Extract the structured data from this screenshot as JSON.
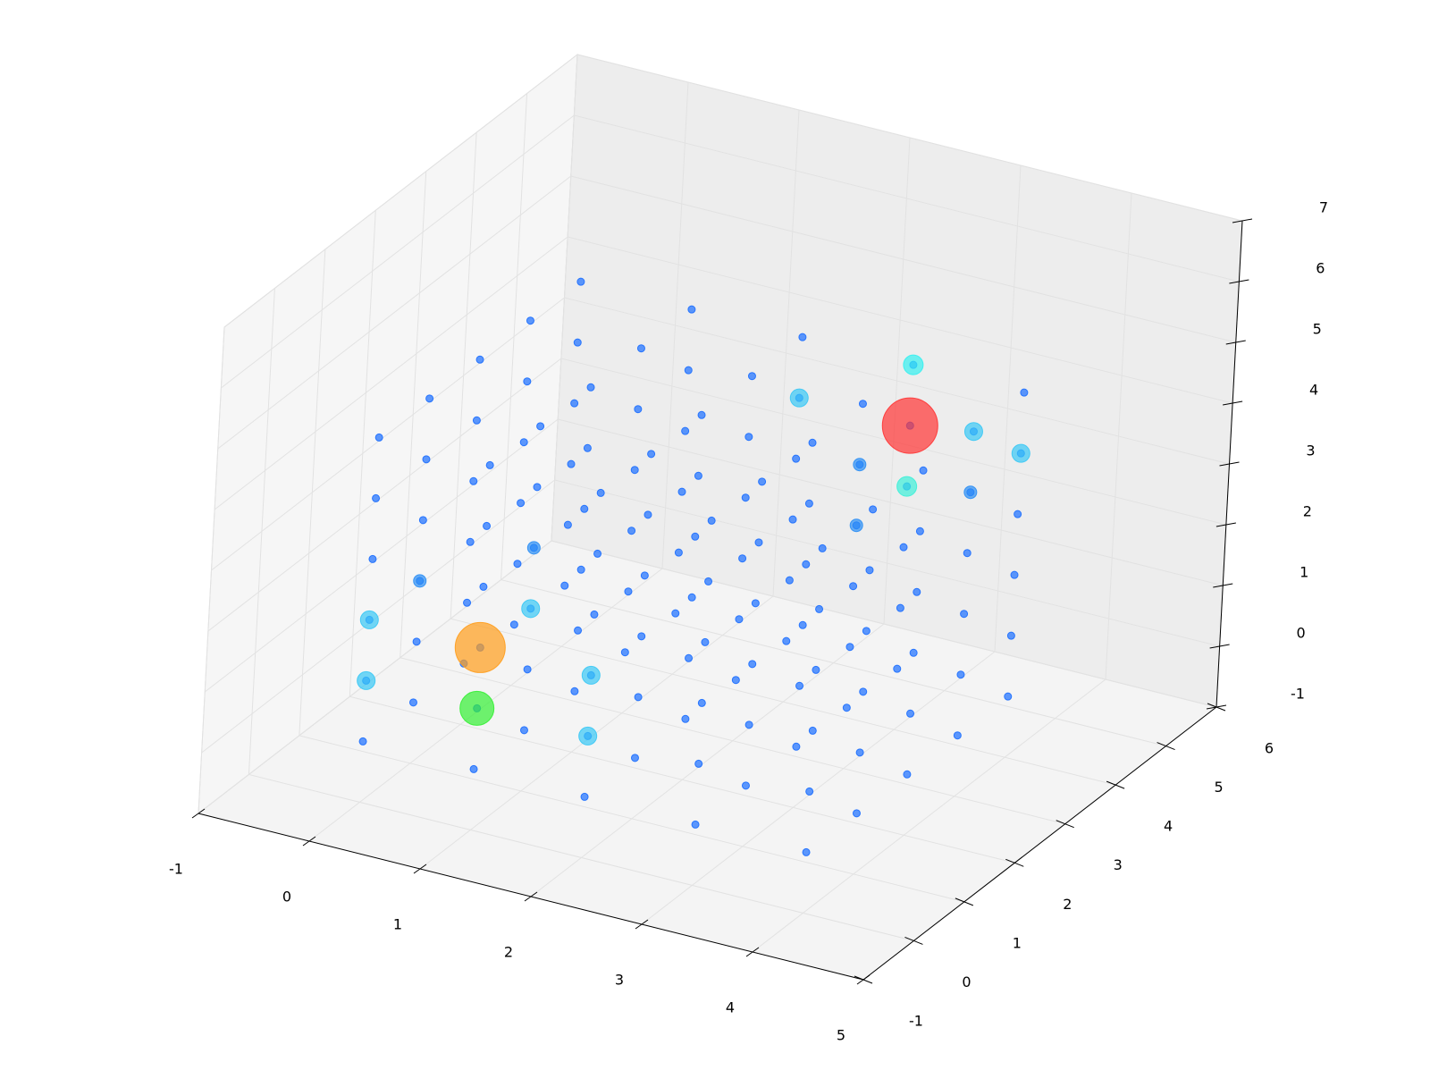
{
  "chart_data": {
    "type": "scatter3d",
    "xlim": [
      -1,
      5
    ],
    "ylim": [
      -1,
      6
    ],
    "zlim": [
      -1,
      7
    ],
    "xticks": [
      -1,
      0,
      1,
      2,
      3,
      4,
      5
    ],
    "yticks": [
      -1,
      0,
      1,
      2,
      3,
      4,
      5,
      6
    ],
    "zticks": [
      -1,
      0,
      1,
      2,
      3,
      4,
      5,
      6,
      7
    ],
    "grid": true,
    "series": [
      {
        "color": "#1a6dff",
        "marker_size": 4,
        "points": [
          [
            0,
            0,
            0
          ],
          [
            0,
            0,
            1
          ],
          [
            0,
            0,
            2
          ],
          [
            0,
            0,
            3
          ],
          [
            0,
            0,
            4
          ],
          [
            0,
            0,
            5
          ],
          [
            0,
            1,
            0
          ],
          [
            0,
            1,
            1
          ],
          [
            0,
            1,
            2
          ],
          [
            0,
            1,
            3
          ],
          [
            0,
            1,
            4
          ],
          [
            0,
            1,
            5
          ],
          [
            0,
            2,
            0
          ],
          [
            0,
            2,
            1
          ],
          [
            0,
            2,
            2
          ],
          [
            0,
            2,
            3
          ],
          [
            0,
            2,
            4
          ],
          [
            0,
            2,
            5
          ],
          [
            0,
            3,
            0
          ],
          [
            0,
            3,
            1
          ],
          [
            0,
            3,
            2
          ],
          [
            0,
            3,
            3
          ],
          [
            0,
            3,
            4
          ],
          [
            0,
            3,
            5
          ],
          [
            0,
            4,
            0
          ],
          [
            0,
            4,
            1
          ],
          [
            0,
            4,
            2
          ],
          [
            0,
            4,
            3
          ],
          [
            0,
            4,
            4
          ],
          [
            0,
            4,
            5
          ],
          [
            1,
            0,
            0
          ],
          [
            1,
            0,
            1
          ],
          [
            1,
            0,
            2
          ],
          [
            1,
            0,
            3
          ],
          [
            1,
            0,
            4
          ],
          [
            1,
            0,
            5
          ],
          [
            1,
            1,
            0
          ],
          [
            1,
            1,
            1
          ],
          [
            1,
            1,
            2
          ],
          [
            1,
            1,
            3
          ],
          [
            1,
            1,
            4
          ],
          [
            1,
            1,
            5
          ],
          [
            1,
            2,
            0
          ],
          [
            1,
            2,
            1
          ],
          [
            1,
            2,
            2
          ],
          [
            1,
            2,
            3
          ],
          [
            1,
            2,
            4
          ],
          [
            1,
            2,
            5
          ],
          [
            1,
            3,
            0
          ],
          [
            1,
            3,
            1
          ],
          [
            1,
            3,
            2
          ],
          [
            1,
            3,
            3
          ],
          [
            1,
            3,
            4
          ],
          [
            1,
            3,
            5
          ],
          [
            1,
            4,
            0
          ],
          [
            1,
            4,
            1
          ],
          [
            1,
            4,
            2
          ],
          [
            1,
            4,
            3
          ],
          [
            1,
            4,
            4
          ],
          [
            1,
            4,
            5
          ],
          [
            2,
            0,
            0
          ],
          [
            2,
            0,
            1
          ],
          [
            2,
            0,
            2
          ],
          [
            2,
            0,
            3
          ],
          [
            2,
            0,
            4
          ],
          [
            2,
            0,
            5
          ],
          [
            2,
            1,
            0
          ],
          [
            2,
            1,
            1
          ],
          [
            2,
            1,
            2
          ],
          [
            2,
            1,
            3
          ],
          [
            2,
            1,
            4
          ],
          [
            2,
            1,
            5
          ],
          [
            2,
            2,
            0
          ],
          [
            2,
            2,
            1
          ],
          [
            2,
            2,
            2
          ],
          [
            2,
            2,
            3
          ],
          [
            2,
            2,
            4
          ],
          [
            2,
            2,
            5
          ],
          [
            2,
            3,
            0
          ],
          [
            2,
            3,
            1
          ],
          [
            2,
            3,
            2
          ],
          [
            2,
            3,
            3
          ],
          [
            2,
            3,
            4
          ],
          [
            2,
            3,
            5
          ],
          [
            2,
            4,
            0
          ],
          [
            2,
            4,
            1
          ],
          [
            2,
            4,
            2
          ],
          [
            2,
            4,
            3
          ],
          [
            2,
            4,
            4
          ],
          [
            2,
            4,
            5
          ],
          [
            3,
            0,
            0
          ],
          [
            3,
            0,
            1
          ],
          [
            3,
            0,
            2
          ],
          [
            3,
            0,
            3
          ],
          [
            3,
            0,
            4
          ],
          [
            3,
            0,
            5
          ],
          [
            3,
            1,
            0
          ],
          [
            3,
            1,
            1
          ],
          [
            3,
            1,
            2
          ],
          [
            3,
            1,
            3
          ],
          [
            3,
            1,
            4
          ],
          [
            3,
            1,
            5
          ],
          [
            3,
            2,
            0
          ],
          [
            3,
            2,
            1
          ],
          [
            3,
            2,
            2
          ],
          [
            3,
            2,
            3
          ],
          [
            3,
            2,
            4
          ],
          [
            3,
            2,
            5
          ],
          [
            3,
            3,
            0
          ],
          [
            3,
            3,
            1
          ],
          [
            3,
            3,
            2
          ],
          [
            3,
            3,
            3
          ],
          [
            3,
            3,
            4
          ],
          [
            3,
            3,
            5
          ],
          [
            3,
            4,
            0
          ],
          [
            3,
            4,
            1
          ],
          [
            3,
            4,
            2
          ],
          [
            3,
            4,
            3
          ],
          [
            3,
            4,
            4
          ],
          [
            3,
            4,
            5
          ],
          [
            4,
            0,
            0
          ],
          [
            4,
            0,
            1
          ],
          [
            4,
            0,
            2
          ],
          [
            4,
            0,
            3
          ],
          [
            4,
            0,
            4
          ],
          [
            4,
            0,
            5
          ],
          [
            4,
            1,
            0
          ],
          [
            4,
            1,
            1
          ],
          [
            4,
            1,
            2
          ],
          [
            4,
            1,
            3
          ],
          [
            4,
            1,
            4
          ],
          [
            4,
            1,
            5
          ],
          [
            4,
            2,
            0
          ],
          [
            4,
            2,
            1
          ],
          [
            4,
            2,
            2
          ],
          [
            4,
            2,
            3
          ],
          [
            4,
            2,
            4
          ],
          [
            4,
            2,
            5
          ],
          [
            4,
            3,
            0
          ],
          [
            4,
            3,
            1
          ],
          [
            4,
            3,
            2
          ],
          [
            4,
            3,
            3
          ],
          [
            4,
            3,
            4
          ],
          [
            4,
            3,
            5
          ],
          [
            4,
            4,
            0
          ],
          [
            4,
            4,
            1
          ],
          [
            4,
            4,
            2
          ],
          [
            4,
            4,
            3
          ],
          [
            4,
            4,
            4
          ],
          [
            4,
            4,
            5
          ]
        ]
      },
      {
        "color": "#2b8ef5",
        "marker_size": 7,
        "points": [
          [
            0,
            1,
            2
          ],
          [
            1,
            1,
            3
          ],
          [
            3,
            3,
            4
          ],
          [
            4,
            3,
            4
          ],
          [
            3,
            3,
            3
          ]
        ]
      },
      {
        "color": "#38c8f5",
        "marker_size": 10,
        "points": [
          [
            0,
            0,
            1
          ],
          [
            0,
            0,
            2
          ],
          [
            2,
            0,
            2
          ],
          [
            2,
            0,
            1
          ],
          [
            1,
            1,
            2
          ],
          [
            2,
            4,
            4
          ],
          [
            4,
            4,
            4
          ],
          [
            4,
            3,
            5
          ]
        ]
      },
      {
        "color": "#33f0f0",
        "marker_size": 11,
        "points": [
          [
            3,
            4,
            5
          ]
        ]
      },
      {
        "color": "#3cf0d8",
        "marker_size": 11,
        "points": [
          [
            3,
            4,
            3
          ]
        ]
      },
      {
        "color": "#ff9c1a",
        "marker_size": 28,
        "points": [
          [
            1,
            0,
            2
          ]
        ]
      },
      {
        "color": "#33f033",
        "marker_size": 19,
        "points": [
          [
            1,
            0,
            1
          ]
        ]
      },
      {
        "color": "#ff3333",
        "marker_size": 31,
        "points": [
          [
            3,
            4,
            4
          ]
        ]
      }
    ]
  }
}
